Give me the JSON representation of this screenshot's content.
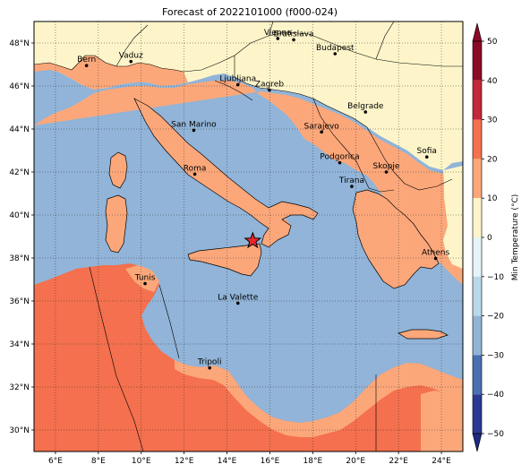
{
  "title": "Forecast of 2022101000 (f000-024)",
  "map": {
    "lon_range": [
      5,
      25
    ],
    "lat_range": [
      29,
      49
    ],
    "x_ticks": [
      "6°E",
      "8°E",
      "10°E",
      "12°E",
      "14°E",
      "16°E",
      "18°E",
      "20°E",
      "22°E",
      "24°E"
    ],
    "y_ticks": [
      "48°N",
      "46°N",
      "44°N",
      "42°N",
      "40°N",
      "38°N",
      "36°N",
      "34°N",
      "32°N",
      "30°N"
    ],
    "gridlines": "dotted",
    "colors": {
      "sea": "#91b4d8",
      "land_0_10": "#fdf5c9",
      "land_10_20": "#fca77a",
      "land_20_30": "#f4704e",
      "border": "#000000"
    },
    "cities": [
      {
        "name": "Bern",
        "lon": 7.45,
        "lat": 46.95
      },
      {
        "name": "Vaduz",
        "lon": 9.52,
        "lat": 47.14
      },
      {
        "name": "Vienna",
        "lon": 16.37,
        "lat": 48.21
      },
      {
        "name": "Bratislava",
        "lon": 17.11,
        "lat": 48.15
      },
      {
        "name": "Budapest",
        "lon": 19.04,
        "lat": 47.5
      },
      {
        "name": "Ljubljana",
        "lon": 14.51,
        "lat": 46.06
      },
      {
        "name": "Zagreb",
        "lon": 15.98,
        "lat": 45.81
      },
      {
        "name": "Belgrade",
        "lon": 20.46,
        "lat": 44.79
      },
      {
        "name": "San Marino",
        "lon": 12.45,
        "lat": 43.94
      },
      {
        "name": "Sarajevo",
        "lon": 18.41,
        "lat": 43.86
      },
      {
        "name": "Podgorica",
        "lon": 19.26,
        "lat": 42.43
      },
      {
        "name": "Sofia",
        "lon": 23.32,
        "lat": 42.7
      },
      {
        "name": "Skopje",
        "lon": 21.43,
        "lat": 42.0
      },
      {
        "name": "Roma",
        "lon": 12.5,
        "lat": 41.9
      },
      {
        "name": "Tirana",
        "lon": 19.82,
        "lat": 41.33
      },
      {
        "name": "Athens",
        "lon": 23.73,
        "lat": 37.98
      },
      {
        "name": "Tunis",
        "lon": 10.18,
        "lat": 36.81
      },
      {
        "name": "La Valette",
        "lon": 14.51,
        "lat": 35.9
      },
      {
        "name": "Tripoli",
        "lon": 13.19,
        "lat": 32.89
      }
    ],
    "star_marker": {
      "lon": 15.2,
      "lat": 38.8
    }
  },
  "colorbar": {
    "label": "Min Temperature (°C)",
    "ticks": [
      "50",
      "40",
      "30",
      "20",
      "10",
      "0",
      "−10",
      "−20",
      "−30",
      "−40",
      "−50"
    ],
    "levels": [
      {
        "from": 40,
        "to": 50,
        "color": "#8b0a26"
      },
      {
        "from": 30,
        "to": 40,
        "color": "#c4263a"
      },
      {
        "from": 20,
        "to": 30,
        "color": "#f4704e"
      },
      {
        "from": 10,
        "to": 20,
        "color": "#fca77a"
      },
      {
        "from": 0,
        "to": 10,
        "color": "#fdf5c9"
      },
      {
        "from": -10,
        "to": 0,
        "color": "#e6f4f9"
      },
      {
        "from": -20,
        "to": -10,
        "color": "#b8d9ea"
      },
      {
        "from": -30,
        "to": -20,
        "color": "#91b4d8"
      },
      {
        "from": -40,
        "to": -30,
        "color": "#4a70b2"
      },
      {
        "from": -50,
        "to": -40,
        "color": "#2a3a93"
      }
    ],
    "over_color": "#8b0a26",
    "under_color": "#1d2a80"
  }
}
